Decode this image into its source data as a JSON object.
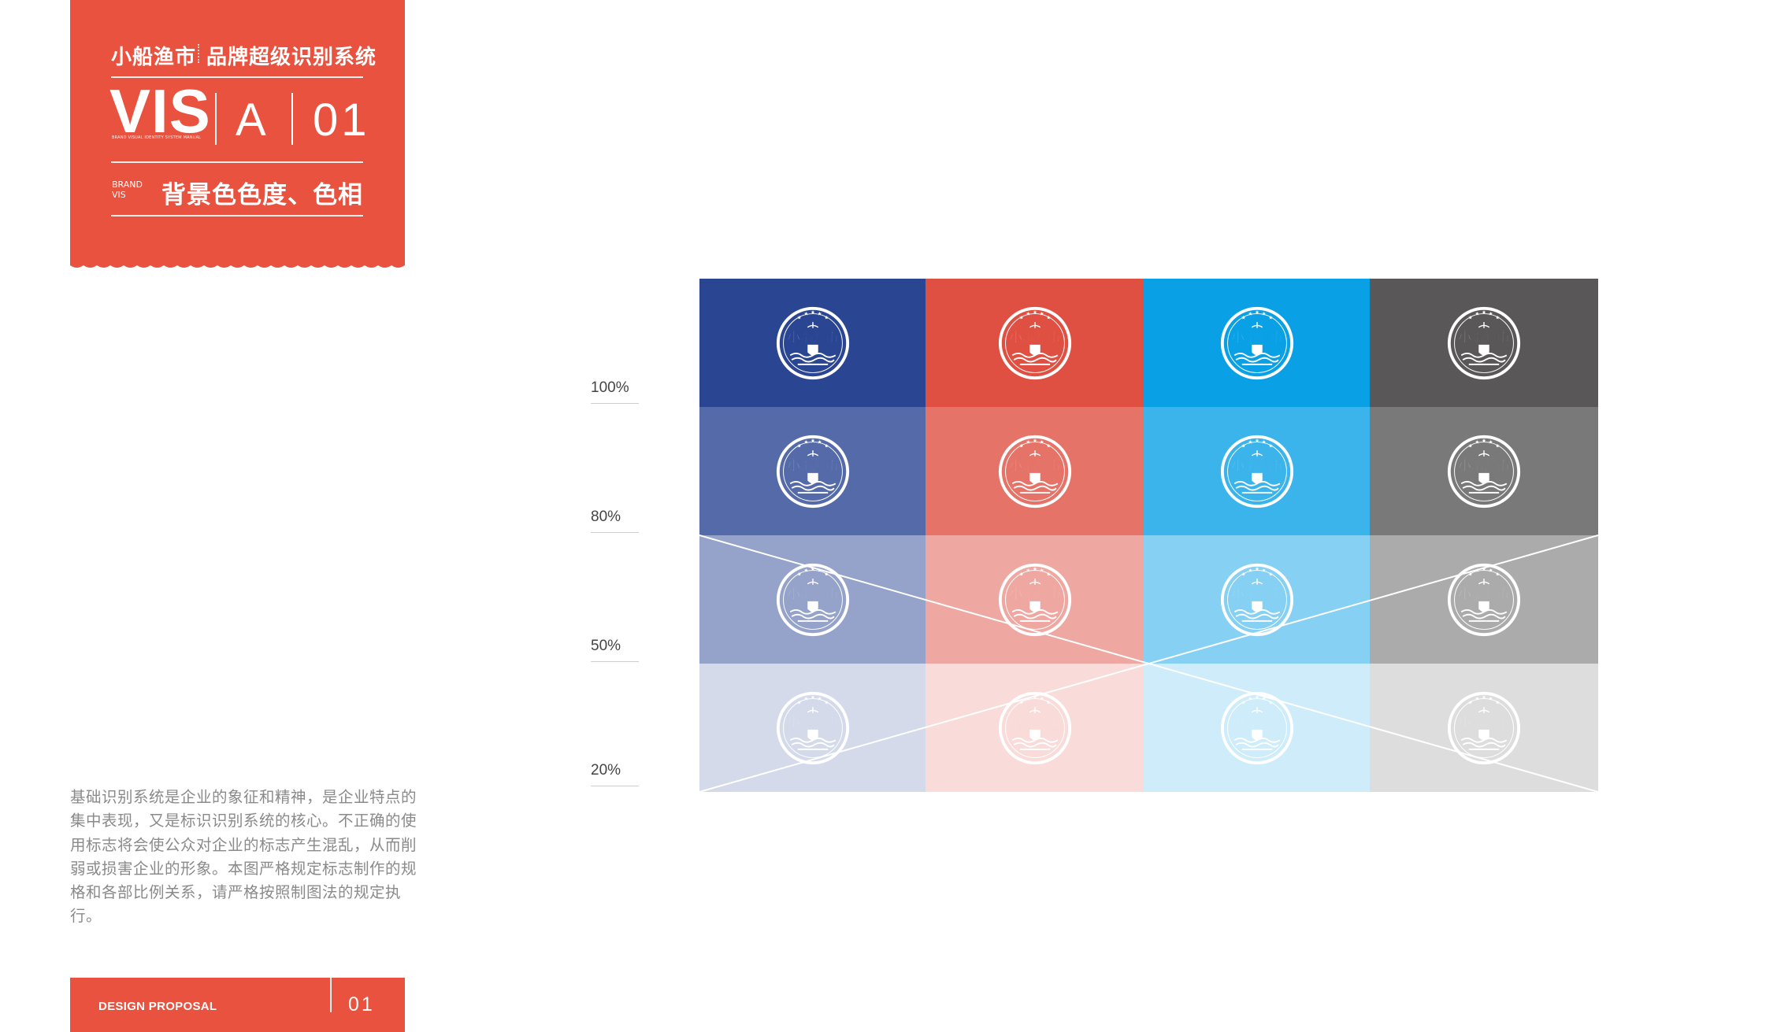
{
  "header": {
    "brand_name": "小船渔市",
    "brand_system": "品牌超级识别系统",
    "vis": "VIS",
    "vis_subtitle": "BRAND VISUAL IDENTITY SYSTEM MANUAL",
    "section_letter": "A",
    "section_number": "01",
    "en_line1": "BRAND",
    "en_line2": "VIS",
    "page_heading": "背景色色度、色相"
  },
  "description": "基础识别系统是企业的象征和精神，是企业特点的集中表现，又是标识识别系统的核心。不正确的使用标志将会使公众对企业的标志产生混乱，从而削弱或损害企业的形象。本图严格规定标志制作的规格和各部比例关系，请严格按照制图法的规定执行。",
  "footer": {
    "label": "DESIGN PROPOSAL",
    "page": "01"
  },
  "colors": {
    "accent": "#E8523F",
    "columns": [
      "#2A4592",
      "#DF5042",
      "#0AA0E6",
      "#595757"
    ]
  },
  "tint_rows": [
    {
      "label": "100%",
      "tint": 1.0
    },
    {
      "label": "80%",
      "tint": 0.8
    },
    {
      "label": "50%",
      "tint": 0.5
    },
    {
      "label": "20%",
      "tint": 0.2
    }
  ],
  "logo": {
    "name": "小船渔市",
    "icon": "brand-logo-badge-icon"
  },
  "crossed_rows": [
    "50%",
    "20%"
  ]
}
